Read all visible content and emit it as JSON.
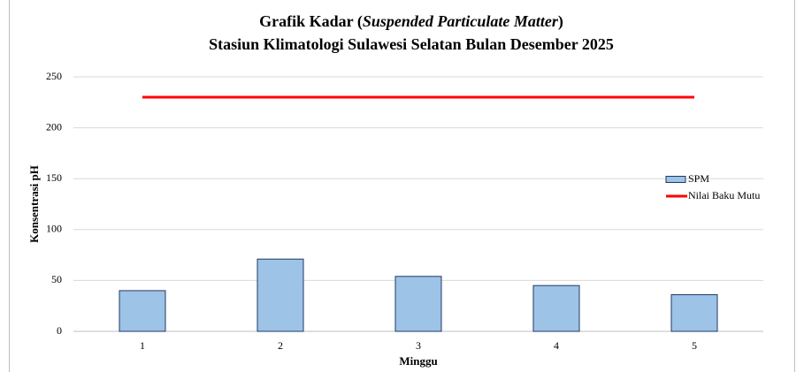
{
  "chart_data": {
    "type": "bar",
    "title": [
      [
        "Grafik Kadar (",
        "Suspended Particulate Matter",
        ")"
      ],
      "Stasiun Klimatologi Sulawesi Selatan Bulan Desember 2025"
    ],
    "x_label": "Minggu",
    "y_label": "Konsentrasi pH",
    "categories": [
      "1",
      "2",
      "3",
      "4",
      "5"
    ],
    "series": [
      {
        "name": "SPM",
        "type": "bar",
        "color": "#9dc3e6",
        "values": [
          40,
          71,
          54,
          45,
          36
        ]
      },
      {
        "name": "Nilai Baku Mutu",
        "type": "line",
        "color": "#ff0000",
        "values": [
          230,
          230,
          230,
          230,
          230
        ]
      }
    ],
    "ylim": [
      0,
      250
    ],
    "yticks": [
      0,
      50,
      100,
      150,
      200,
      250
    ],
    "grid": true,
    "legend": "top-right"
  }
}
